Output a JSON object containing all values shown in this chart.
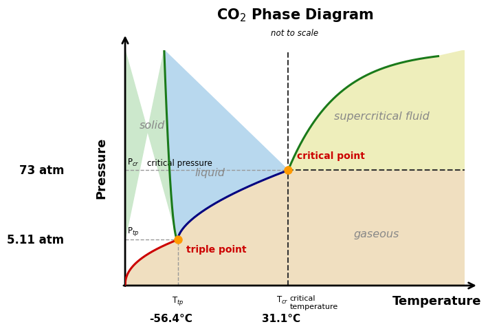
{
  "title": "CO$_2$ Phase Diagram",
  "subtitle": "not to scale",
  "xlabel": "Temperature",
  "ylabel": "Pressure",
  "triple_point_label": "triple point",
  "critical_point_label": "critical point",
  "p_cr_label": "P$_{cr}$",
  "p_tp_label": "P$_{tp}$",
  "t_cr_label": "T$_{cr}$",
  "t_tp_label": "T$_{tp}$",
  "atm_73": "73 atm",
  "atm_511": "5.11 atm",
  "temp_neg564": "-56.4°C",
  "temp_311": "31.1°C",
  "critical_pressure_label": "critical pressure",
  "critical_temperature_label": "critical\ntemperature",
  "region_solid": "solid",
  "region_liquid": "liquid",
  "region_gas": "gaseous",
  "region_supercritical": "supercritical fluid",
  "color_solid_region": "#cce8cc",
  "color_liquid_region": "#b8d8ee",
  "color_gas_region": "#f0dfc0",
  "color_supercritical_region": "#eeeebb",
  "color_sublimation_line": "#cc0000",
  "color_fusion_line": "#1a7a1a",
  "color_vaporization_line": "#000080",
  "color_critical_point": "#ff9900",
  "color_triple_point": "#ff9900",
  "color_dashed_gray": "#999999",
  "color_dashed_black": "#333333",
  "color_critical_label": "#cc0000",
  "color_region_text": "#888888"
}
